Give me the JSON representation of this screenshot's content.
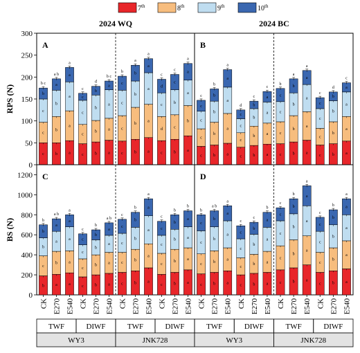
{
  "legend": [
    {
      "label": "7",
      "sup": "th",
      "color": "#e8262a"
    },
    {
      "label": "8",
      "sup": "th",
      "color": "#f7bd7e"
    },
    {
      "label": "9",
      "sup": "th",
      "color": "#bfddf0"
    },
    {
      "label": "10",
      "sup": "th",
      "color": "#3a67b0"
    }
  ],
  "columns": [
    {
      "title": "2024  WQ"
    },
    {
      "title": "2024  BC"
    }
  ],
  "x_labels": {
    "treatments": [
      "CK",
      "E270",
      "E540",
      "CK",
      "E270",
      "E540"
    ],
    "water": [
      "TWF",
      "DIWF"
    ],
    "variety": [
      "WY3",
      "JNK728",
      "WY3",
      "JNK728"
    ]
  },
  "chart_data": [
    {
      "type": "bar",
      "stacked": true,
      "panel": "A",
      "ylabel": "RPS (N)",
      "ylim": [
        0,
        300
      ],
      "yticks": [
        0,
        50,
        100,
        150,
        200,
        250,
        300
      ],
      "categories": [
        "CK",
        "E270",
        "E540",
        "CK",
        "E270",
        "E540",
        "CK",
        "E270",
        "E540",
        "CK",
        "E270",
        "E540"
      ],
      "series": [
        {
          "name": "7th",
          "values": [
            50,
            50,
            55,
            48,
            52,
            56,
            54,
            58,
            62,
            55,
            58,
            66
          ],
          "letters": [
            "c",
            "b",
            "a",
            "c",
            "b",
            "a",
            "c",
            "b",
            "a",
            "c",
            "b",
            "a"
          ]
        },
        {
          "name": "8th",
          "values": [
            47,
            60,
            68,
            44,
            49,
            50,
            58,
            73,
            76,
            55,
            56,
            69
          ],
          "letters": [
            "c",
            "b",
            "a",
            "c",
            "b",
            "a",
            "c",
            "b",
            "a",
            "d",
            "c",
            "b"
          ]
        },
        {
          "name": "9th",
          "values": [
            53,
            60,
            66,
            55,
            58,
            65,
            58,
            60,
            72,
            54,
            57,
            58
          ],
          "letters": [
            "c",
            "b",
            "a",
            "c",
            "b",
            "a",
            "c",
            "b",
            "a",
            "c",
            "b",
            "a"
          ]
        },
        {
          "name": "10th",
          "values": [
            25,
            26,
            33,
            16,
            20,
            20,
            32,
            36,
            32,
            31,
            35,
            38
          ],
          "letters": [
            "b",
            "a",
            "a",
            "c",
            "b",
            "a",
            "c",
            "b",
            "a",
            "d",
            "c",
            "a"
          ]
        }
      ],
      "total_letters": [
        "b c",
        "a b",
        "a",
        "c",
        "d",
        "b c",
        "b",
        "a",
        "a",
        "c",
        "c",
        "a"
      ]
    },
    {
      "type": "bar",
      "stacked": true,
      "panel": "B",
      "ylabel": "RPS (N)",
      "ylim": [
        0,
        300
      ],
      "yticks": [
        0,
        50,
        100,
        150,
        200,
        250,
        300
      ],
      "categories": [
        "CK",
        "E270",
        "E540",
        "CK",
        "E270",
        "E540",
        "CK",
        "E270",
        "E540",
        "CK",
        "E270",
        "E540"
      ],
      "series": [
        {
          "name": "7th",
          "values": [
            42,
            45,
            49,
            40,
            44,
            47,
            48,
            52,
            56,
            45,
            48,
            54
          ],
          "letters": [
            "c",
            "b",
            "a",
            "c",
            "b",
            "a",
            "c",
            "b",
            "a",
            "c",
            "b",
            "a"
          ]
        },
        {
          "name": "8th",
          "values": [
            40,
            52,
            68,
            33,
            44,
            48,
            50,
            60,
            65,
            38,
            50,
            56
          ],
          "letters": [
            "c",
            "b",
            "a",
            "c",
            "b",
            "a",
            "c",
            "b",
            "a",
            "c",
            "b",
            "a"
          ]
        },
        {
          "name": "9th",
          "values": [
            40,
            48,
            60,
            32,
            40,
            48,
            46,
            52,
            62,
            45,
            48,
            56
          ],
          "letters": [
            "c",
            "b",
            "a",
            "c",
            "b",
            "a",
            "c",
            "b",
            "a",
            "c",
            "b",
            "a"
          ]
        },
        {
          "name": "10th",
          "values": [
            25,
            28,
            40,
            20,
            17,
            24,
            30,
            32,
            32,
            25,
            20,
            21
          ],
          "letters": [
            "c",
            "b",
            "a",
            "c",
            "b",
            "a",
            "c",
            "b",
            "a",
            "c",
            "b",
            "a"
          ]
        }
      ],
      "total_letters": [
        "c",
        "b",
        "a",
        "d",
        "c",
        "c",
        "b",
        "a",
        "a",
        "c",
        "d",
        "c"
      ]
    },
    {
      "type": "bar",
      "stacked": true,
      "panel": "C",
      "ylabel": "BS (N)",
      "ylim": [
        0,
        1300
      ],
      "yticks": [
        0,
        200,
        400,
        600,
        800,
        1000,
        1200
      ],
      "categories": [
        "CK",
        "E270",
        "E540",
        "CK",
        "E270",
        "E540",
        "CK",
        "E270",
        "E540",
        "CK",
        "E270",
        "E540"
      ],
      "series": [
        {
          "name": "7th",
          "values": [
            190,
            205,
            220,
            180,
            200,
            215,
            225,
            240,
            270,
            205,
            225,
            250
          ],
          "letters": [
            "b",
            "a",
            "a",
            "c",
            "b",
            "a",
            "c",
            "b",
            "a",
            "c",
            "b",
            "a"
          ]
        },
        {
          "name": "8th",
          "values": [
            200,
            230,
            220,
            180,
            200,
            210,
            200,
            215,
            240,
            210,
            230,
            220
          ],
          "letters": [
            "c",
            "b",
            "a",
            "c",
            "b",
            "a",
            "c",
            "b",
            "a",
            "c",
            "b",
            "a"
          ]
        },
        {
          "name": "9th",
          "values": [
            180,
            200,
            240,
            140,
            150,
            170,
            190,
            220,
            280,
            180,
            200,
            210
          ],
          "letters": [
            "b",
            "a",
            "a",
            "c",
            "b",
            "a",
            "c",
            "b",
            "a",
            "c",
            "b",
            "a"
          ]
        },
        {
          "name": "10th",
          "values": [
            130,
            125,
            120,
            110,
            100,
            125,
            140,
            150,
            170,
            140,
            145,
            160
          ],
          "letters": [
            "b",
            "a",
            "a",
            "c",
            "b",
            "a",
            "c",
            "b",
            "a",
            "c",
            "b",
            "a"
          ]
        }
      ],
      "total_letters": [
        "b",
        "a b",
        "a",
        "c",
        "b",
        "a b",
        "c",
        "b",
        "a",
        "c",
        "b",
        "b"
      ]
    },
    {
      "type": "bar",
      "stacked": true,
      "panel": "D",
      "ylabel": "BS (N)",
      "ylim": [
        0,
        1300
      ],
      "yticks": [
        0,
        200,
        400,
        600,
        800,
        1000,
        1200
      ],
      "categories": [
        "CK",
        "E270",
        "E540",
        "CK",
        "E270",
        "E540",
        "CK",
        "E270",
        "E540",
        "CK",
        "E270",
        "E540"
      ],
      "series": [
        {
          "name": "7th",
          "values": [
            210,
            225,
            240,
            200,
            215,
            225,
            250,
            270,
            300,
            225,
            240,
            260
          ],
          "letters": [
            "c",
            "b",
            "a",
            "c",
            "b",
            "a",
            "c",
            "b",
            "a",
            "c",
            "b",
            "a"
          ]
        },
        {
          "name": "8th",
          "values": [
            200,
            215,
            230,
            170,
            190,
            210,
            240,
            280,
            290,
            200,
            230,
            280
          ],
          "letters": [
            "c",
            "b",
            "a",
            "c",
            "b",
            "a",
            "c",
            "b",
            "a",
            "c",
            "b",
            "a"
          ]
        },
        {
          "name": "9th",
          "values": [
            230,
            240,
            270,
            190,
            200,
            240,
            250,
            260,
            300,
            210,
            230,
            260
          ],
          "letters": [
            "c",
            "b",
            "a",
            "c",
            "b",
            "a",
            "c",
            "b",
            "a",
            "c",
            "b",
            "a"
          ]
        },
        {
          "name": "10th",
          "values": [
            160,
            160,
            150,
            130,
            120,
            150,
            130,
            150,
            200,
            140,
            150,
            160
          ],
          "letters": [
            "c",
            "b",
            "a",
            "c",
            "b",
            "a",
            "c",
            "b",
            "a",
            "c",
            "b",
            "a"
          ]
        }
      ],
      "total_letters": [
        "b",
        "a b",
        "a",
        "c",
        "c",
        "b",
        "c",
        "b",
        "a",
        "c",
        "b",
        "a"
      ]
    }
  ]
}
